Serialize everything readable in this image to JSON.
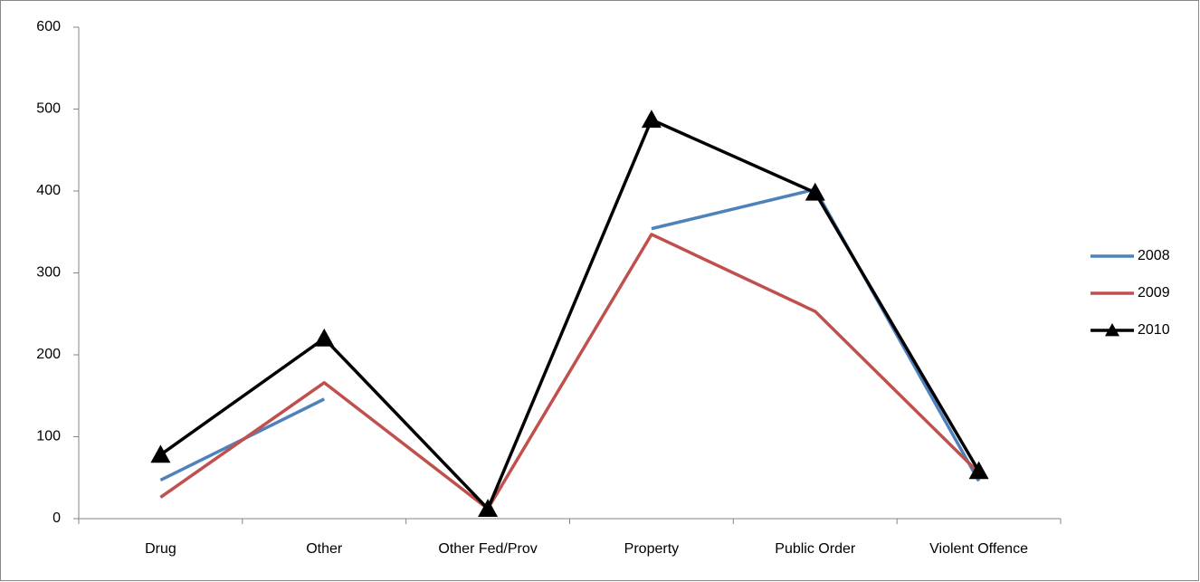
{
  "chart_data": {
    "type": "line",
    "categories": [
      "Drug",
      "Other",
      "Other Fed/Prov",
      "Property",
      "Public Order",
      "Violent Offence"
    ],
    "series": [
      {
        "name": "2008",
        "color": "#4f81bd",
        "values": [
          47,
          146,
          null,
          354,
          402,
          46
        ]
      },
      {
        "name": "2009",
        "color": "#c0504d",
        "values": [
          26,
          166,
          12,
          347,
          253,
          56
        ]
      },
      {
        "name": "2010",
        "color": "#000000",
        "marker": "triangle",
        "values": [
          78,
          220,
          12,
          487,
          398,
          58
        ]
      }
    ],
    "ylim": [
      0,
      600
    ],
    "yticks": [
      0,
      100,
      200,
      300,
      400,
      500,
      600
    ],
    "grid": false,
    "legend": "right"
  }
}
